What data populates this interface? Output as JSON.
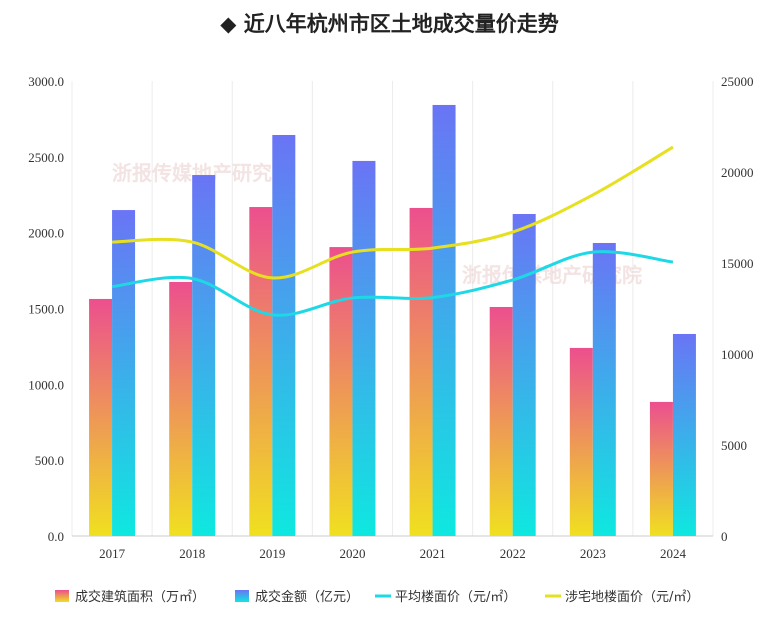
{
  "title": "◆ 近八年杭州市区土地成交量价走势",
  "watermark": "浙报传媒地产研究院",
  "chart_data": {
    "type": "bar+line",
    "categories": [
      "2017",
      "2018",
      "2019",
      "2020",
      "2021",
      "2022",
      "2023",
      "2024"
    ],
    "left_axis": {
      "range": [
        0,
        3000
      ],
      "ticks": [
        "0.0",
        "500.0",
        "1000.0",
        "1500.0",
        "2000.0",
        "2500.0",
        "3000.0"
      ]
    },
    "right_axis": {
      "range": [
        0,
        25000
      ],
      "ticks": [
        "0",
        "5000",
        "10000",
        "15000",
        "20000",
        "25000"
      ]
    },
    "grid": "vertical",
    "legend_position": "bottom",
    "series": [
      {
        "name": "成交建筑面积（万㎡）",
        "type": "bar",
        "axis": "left",
        "values": [
          1563,
          1675,
          2169,
          1905,
          2163,
          1510,
          1240,
          884
        ],
        "colors": [
          "#ec4f8e",
          "#f0e020"
        ]
      },
      {
        "name": "成交金额（亿元）",
        "type": "bar",
        "axis": "left",
        "values": [
          2149,
          2380,
          2644,
          2473,
          2842,
          2123,
          1932,
          1332
        ],
        "colors": [
          "#6a74f5",
          "#0ee8e0"
        ]
      },
      {
        "name": "平均楼面价（元/㎡）",
        "type": "line",
        "axis": "right",
        "values": [
          13700,
          14150,
          12150,
          13080,
          13100,
          14070,
          15600,
          15050
        ],
        "color": "#1ed8e6"
      },
      {
        "name": "涉宅地楼面价（元/㎡）",
        "type": "line",
        "axis": "right",
        "values": [
          16150,
          16150,
          14180,
          15600,
          15820,
          16700,
          18740,
          21370
        ],
        "color": "#e6e020"
      }
    ]
  }
}
